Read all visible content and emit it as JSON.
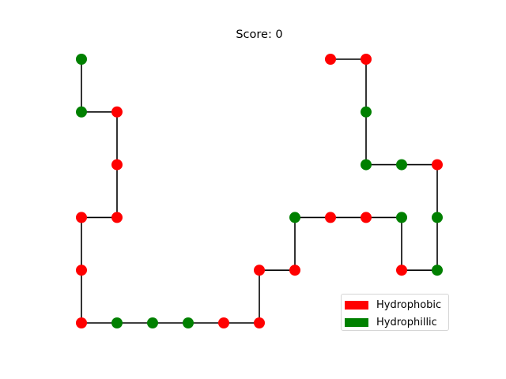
{
  "game": {
    "title": "Score: 0"
  },
  "legend": {
    "items": [
      {
        "label": "Hydrophobic",
        "color": "#ff0000"
      },
      {
        "label": "Hydrophillic",
        "color": "#008000"
      }
    ]
  },
  "chart_data": {
    "type": "scatter",
    "title": "Score: 0",
    "connected": true,
    "colors": {
      "H": "#ff0000",
      "P": "#008000",
      "bond": "#000000"
    },
    "chain": [
      {
        "x": 0,
        "y": 5,
        "type": "P"
      },
      {
        "x": 0,
        "y": 4,
        "type": "P"
      },
      {
        "x": 1,
        "y": 4,
        "type": "H"
      },
      {
        "x": 1,
        "y": 3,
        "type": "H"
      },
      {
        "x": 1,
        "y": 2,
        "type": "H"
      },
      {
        "x": 0,
        "y": 2,
        "type": "H"
      },
      {
        "x": 0,
        "y": 1,
        "type": "H"
      },
      {
        "x": 0,
        "y": 0,
        "type": "H"
      },
      {
        "x": 1,
        "y": 0,
        "type": "P"
      },
      {
        "x": 2,
        "y": 0,
        "type": "P"
      },
      {
        "x": 3,
        "y": 0,
        "type": "P"
      },
      {
        "x": 4,
        "y": 0,
        "type": "H"
      },
      {
        "x": 5,
        "y": 0,
        "type": "H"
      },
      {
        "x": 5,
        "y": 1,
        "type": "H"
      },
      {
        "x": 6,
        "y": 1,
        "type": "H"
      },
      {
        "x": 6,
        "y": 2,
        "type": "P"
      },
      {
        "x": 7,
        "y": 2,
        "type": "H"
      },
      {
        "x": 8,
        "y": 2,
        "type": "H"
      },
      {
        "x": 9,
        "y": 2,
        "type": "P"
      },
      {
        "x": 9,
        "y": 1,
        "type": "H"
      },
      {
        "x": 10,
        "y": 1,
        "type": "P"
      },
      {
        "x": 10,
        "y": 2,
        "type": "P"
      },
      {
        "x": 10,
        "y": 3,
        "type": "H"
      },
      {
        "x": 9,
        "y": 3,
        "type": "P"
      },
      {
        "x": 8,
        "y": 3,
        "type": "P"
      },
      {
        "x": 8,
        "y": 4,
        "type": "P"
      },
      {
        "x": 8,
        "y": 5,
        "type": "H"
      },
      {
        "x": 7,
        "y": 5,
        "type": "H"
      }
    ],
    "xlim": [
      0,
      10
    ],
    "ylim": [
      0,
      5
    ],
    "grid": false,
    "legend_position": "lower-right"
  }
}
